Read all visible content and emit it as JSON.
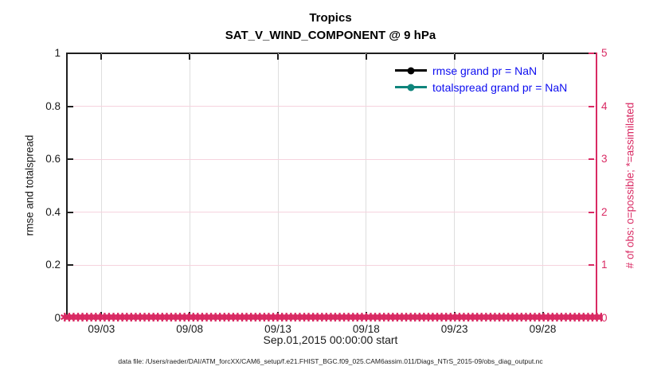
{
  "figure": {
    "title": "Tropics",
    "subtitle": "SAT_V_WIND_COMPONENT @ 9 hPa",
    "xlabel": "Sep.01,2015 00:00:00 start",
    "left_axis_label": "rmse and totalspread",
    "right_axis_label": "# of obs: o=possible; *=assimilated",
    "caption": "data file: /Users/raeder/DAI/ATM_forcXX/CAM6_setup/f.e21.FHIST_BGC.f09_025.CAM6assim.011/Diags_NTrS_2015-09/obs_diag_output.nc"
  },
  "colors": {
    "pink_axis": "#d92a63",
    "grid_vertical": "#dedede",
    "grid_horizontal": "#f6d3de",
    "legend_text": "#0d0df0",
    "rmse_series": "#000000",
    "totalspread_series": "#0f857c",
    "frame": "#1f1f1f"
  },
  "legend": {
    "items": [
      {
        "label": "rmse grand pr = NaN",
        "color": "#000000"
      },
      {
        "label": "totalspread grand pr = NaN",
        "color": "#0f857c"
      }
    ]
  },
  "axes": {
    "x_tick_labels": [
      "09/03",
      "09/08",
      "09/13",
      "09/18",
      "09/23",
      "09/28"
    ],
    "left_tick_labels": [
      "0",
      "0.2",
      "0.4",
      "0.6",
      "0.8",
      "1"
    ],
    "right_tick_labels": [
      "0",
      "1",
      "2",
      "3",
      "4",
      "5"
    ]
  },
  "obs_marker": {
    "glyph": "✱",
    "repeat": 135,
    "color": "#d92a63"
  },
  "chart_data": {
    "type": "line",
    "title": "Tropics",
    "subtitle": "SAT_V_WIND_COMPONENT @ 9 hPa",
    "xlabel": "Sep.01,2015 00:00:00 start",
    "x_range_days": [
      "2015-09-01 00:00:00",
      "2015-10-01 00:00:00"
    ],
    "x_tick_labels": [
      "09/03",
      "09/08",
      "09/13",
      "09/18",
      "09/23",
      "09/28"
    ],
    "left_axis": {
      "label": "rmse and totalspread",
      "range": [
        0,
        1
      ],
      "ticks": [
        0,
        0.2,
        0.4,
        0.6,
        0.8,
        1
      ]
    },
    "right_axis": {
      "label": "# of obs: o=possible; *=assimilated",
      "range": [
        0,
        5
      ],
      "ticks": [
        0,
        1,
        2,
        3,
        4,
        5
      ],
      "color": "#d92a63"
    },
    "series": [
      {
        "name": "rmse grand pr = NaN",
        "axis": "left",
        "color": "#000000",
        "marker": "filled-circle",
        "values": "all NaN — no curve drawn"
      },
      {
        "name": "totalspread grand pr = NaN",
        "axis": "left",
        "color": "#0f857c",
        "marker": "filled-circle",
        "values": "all NaN — no curve drawn"
      },
      {
        "name": "# of obs (o=possible, *=assimilated)",
        "axis": "right",
        "color": "#d92a63",
        "marker": "o and *",
        "value_constant": 0,
        "values": "0 at every time step across full date range"
      }
    ],
    "grid": true,
    "legend_position": "upper right inside, no box"
  }
}
